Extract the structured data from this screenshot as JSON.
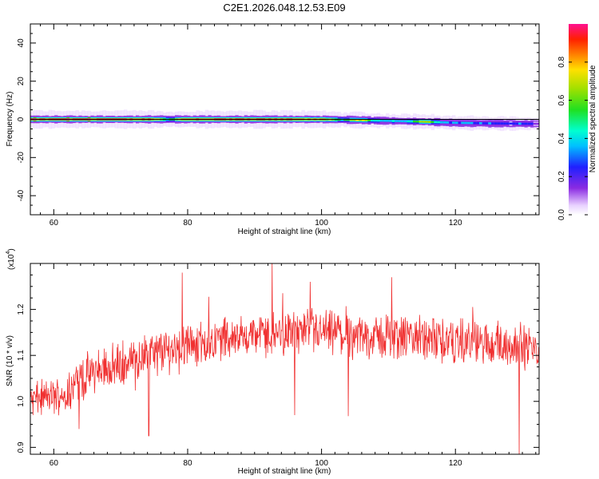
{
  "figure": {
    "title": "C2E1.2026.048.12.53.E09"
  },
  "chart_data": [
    {
      "type": "heatmap",
      "panel": "spectrogram",
      "xlabel": "Height of straight line (km)",
      "ylabel": "Frequency (Hz)",
      "xlim": [
        56.5,
        132.5
      ],
      "ylim": [
        -50,
        50
      ],
      "xticks": [
        60,
        80,
        100,
        120
      ],
      "yticks": [
        40,
        20,
        0,
        -20,
        -40
      ],
      "ytick_labels": [
        "40",
        "20",
        "0",
        "-20",
        "-40"
      ],
      "band_center_hz": [
        [
          57,
          0.0
        ],
        [
          70,
          0.0
        ],
        [
          80,
          0.0
        ],
        [
          90,
          0.0
        ],
        [
          100,
          0.0
        ],
        [
          105,
          -0.3
        ],
        [
          110,
          -0.8
        ],
        [
          115,
          -1.2
        ],
        [
          120,
          -1.8
        ],
        [
          125,
          -2.1
        ],
        [
          131,
          -2.3
        ]
      ],
      "peak_amplitude": [
        [
          57,
          0.95
        ],
        [
          65,
          0.95
        ],
        [
          75,
          0.9
        ],
        [
          77,
          0.55
        ],
        [
          80,
          0.92
        ],
        [
          90,
          0.92
        ],
        [
          95,
          0.9
        ],
        [
          100,
          0.85
        ],
        [
          103,
          0.55
        ],
        [
          106,
          0.8
        ],
        [
          108,
          0.45
        ],
        [
          113,
          0.45
        ],
        [
          115,
          0.75
        ],
        [
          118,
          0.4
        ],
        [
          125,
          0.35
        ],
        [
          131,
          0.3
        ]
      ],
      "colorbar": {
        "label": "Normalized spectral amplitude",
        "range": [
          0.0,
          1.0
        ],
        "ticks": [
          "0.0",
          "0.2",
          "0.4",
          "0.6",
          "0.8"
        ]
      }
    },
    {
      "type": "line",
      "panel": "snr",
      "xlabel": "Height of straight line (km)",
      "ylabel": "SNR (10 * v/v)",
      "scale_label": "(x10",
      "scale_exp": "4",
      "scale_close": ")",
      "xlim": [
        56.5,
        132.5
      ],
      "ylim": [
        0.885,
        1.3
      ],
      "xticks": [
        60,
        80,
        100,
        120
      ],
      "yticks": [
        1.2,
        1.1,
        1.0,
        0.9
      ],
      "ytick_labels": [
        "1.2",
        "1.1",
        "1.0",
        "0.9"
      ],
      "trend": [
        [
          57,
          1.005
        ],
        [
          60,
          1.01
        ],
        [
          62,
          1.02
        ],
        [
          64,
          1.05
        ],
        [
          67,
          1.07
        ],
        [
          70,
          1.08
        ],
        [
          74,
          1.1
        ],
        [
          78,
          1.115
        ],
        [
          82,
          1.125
        ],
        [
          86,
          1.14
        ],
        [
          90,
          1.145
        ],
        [
          95,
          1.15
        ],
        [
          100,
          1.15
        ],
        [
          105,
          1.14
        ],
        [
          110,
          1.14
        ],
        [
          115,
          1.135
        ],
        [
          120,
          1.13
        ],
        [
          125,
          1.125
        ],
        [
          130,
          1.12
        ],
        [
          132.5,
          1.11
        ]
      ],
      "noise_amplitude": 0.04,
      "spikes": [
        [
          63.8,
          0.94
        ],
        [
          74.2,
          0.925
        ],
        [
          79.2,
          1.28
        ],
        [
          92.6,
          1.3
        ],
        [
          96.0,
          0.97
        ],
        [
          98.3,
          1.26
        ],
        [
          104.0,
          0.968
        ],
        [
          110.5,
          1.27
        ],
        [
          129.5,
          0.88
        ],
        [
          131.2,
          1.14
        ]
      ],
      "line_color": "#f03030"
    }
  ]
}
